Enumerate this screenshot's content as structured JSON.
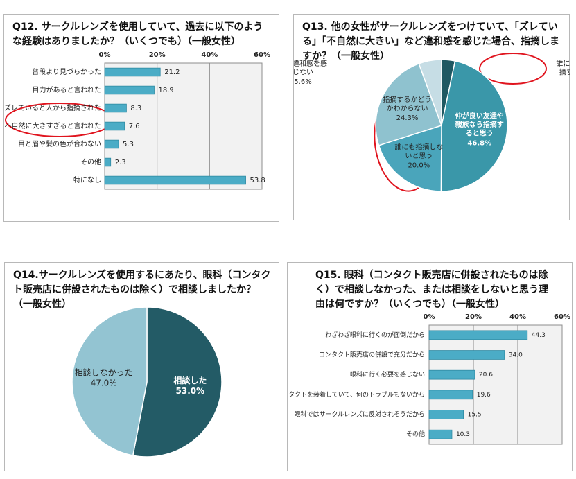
{
  "chart_data": [
    {
      "type": "hbar",
      "title": "Q12. サークルレンズを使用していて、過去に以下のような経験はありましたか？（いくつでも）（一般女性）",
      "categories": [
        "普段より見づらかった",
        "目力があると言われた",
        "ズレていると人から指摘された",
        "不自然に大きすぎると言われた",
        "目と眉や髪の色が合わない",
        "その他",
        "特になし"
      ],
      "values": [
        21.2,
        18.9,
        8.3,
        7.6,
        5.3,
        2.3,
        53.8
      ],
      "color": "#4bacc6",
      "xlim": [
        0,
        60
      ],
      "xticks": [
        {
          "value": 0,
          "label": "0%"
        },
        {
          "value": 20,
          "label": "20%"
        },
        {
          "value": 40,
          "label": "40%"
        },
        {
          "value": 60,
          "label": "60%"
        }
      ],
      "grid": true
    },
    {
      "type": "pie",
      "title": "Q13. 他の女性がサークルレンズをつけていて、「ズレている」「不自然に大きい」など違和感を感じた場合、指摘しますか？（一般女性）",
      "categories": [
        "誰に対しても指摘すると思う",
        "仲が良い友達や親族なら指摘すると思う",
        "誰にも指摘しないと思う",
        "指摘するかどうかわからない",
        "特に違和感を感じない"
      ],
      "values": [
        3.3,
        46.8,
        20.0,
        24.3,
        5.6
      ],
      "value_labels": [
        "3.3%",
        "46.8%",
        "20.0%",
        "24.3%",
        "5.6%"
      ],
      "colors": [
        "#1f5862",
        "#3a97a9",
        "#4aa5bb",
        "#8fc2cf",
        "#c6dde5"
      ]
    },
    {
      "type": "pie",
      "title": "Q14.サークルレンズを使用するにあたり、眼科（コンタクト販売店に併設されたものは除く）で相談しましたか？（一般女性）",
      "categories": [
        "相談した",
        "相談しなかった"
      ],
      "values": [
        53.0,
        47.0
      ],
      "value_labels": [
        "53.0%",
        "47.0%"
      ],
      "colors": [
        "#235b66",
        "#93c4d2"
      ]
    },
    {
      "type": "hbar",
      "title": "Q15. 眼科（コンタクト販売店に併設されたものは除く）で相談しなかった、または相談をしないと思う理由は何ですか？（いくつでも）（一般女性）",
      "categories": [
        "わざわざ眼科に行くのが面倒だから",
        "コンタクト販売店の併設で充分だから",
        "眼科に行く必要を感じない",
        "長くコンタクトを装着していて、何のトラブルもないから",
        "眼科ではサークルレンズに反対されそうだから",
        "その他"
      ],
      "values": [
        44.3,
        34.0,
        20.6,
        19.6,
        15.5,
        10.3
      ],
      "value_labels": [
        "44.3",
        "34.0",
        "20.6",
        "19.6",
        "15.5",
        "10.3"
      ],
      "color": "#4bacc6",
      "xlim": [
        0,
        60
      ],
      "xticks": [
        {
          "value": 0,
          "label": "0%"
        },
        {
          "value": 20,
          "label": "20%"
        },
        {
          "value": 40,
          "label": "40%"
        },
        {
          "value": 60,
          "label": "60%"
        }
      ],
      "grid": true
    }
  ]
}
